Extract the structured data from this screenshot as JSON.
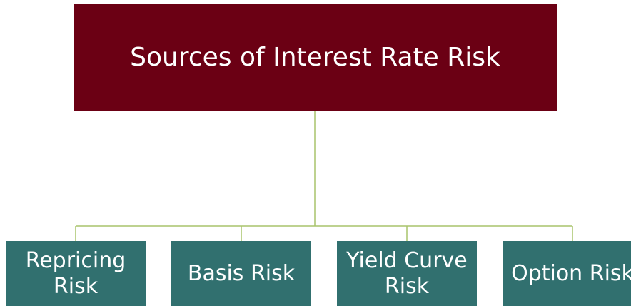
{
  "root": {
    "label": "Sources of Interest Rate Risk"
  },
  "children": [
    {
      "label": "Repricing Risk"
    },
    {
      "label": "Basis Risk"
    },
    {
      "label": "Yield Curve Risk"
    },
    {
      "label": "Option Risk"
    }
  ]
}
